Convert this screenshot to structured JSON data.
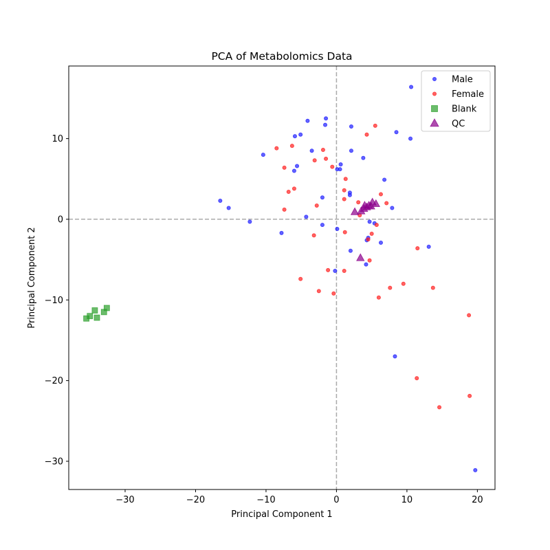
{
  "chart_data": {
    "type": "scatter",
    "title": "PCA of Metabolomics Data",
    "xlabel": "Principal Component 1",
    "ylabel": "Principal Component 2",
    "xlim": [
      -38,
      22.5
    ],
    "ylim": [
      -33.5,
      19
    ],
    "xticks": [
      -30,
      -20,
      -10,
      0,
      10,
      20
    ],
    "yticks": [
      -30,
      -20,
      -10,
      0,
      10
    ],
    "grid": false,
    "reference_lines": {
      "x": 0,
      "y": 0,
      "style": "dashed",
      "color": "#aaaaaa"
    },
    "legend": {
      "placement": "top-right"
    },
    "series": [
      {
        "name": "Male",
        "marker": "circle",
        "color": "#1f1fff",
        "points": [
          [
            10.6,
            16.4
          ],
          [
            -1.5,
            12.5
          ],
          [
            -4.1,
            12.2
          ],
          [
            2.1,
            11.5
          ],
          [
            -1.6,
            11.7
          ],
          [
            -5.1,
            10.5
          ],
          [
            -5.9,
            10.3
          ],
          [
            8.5,
            10.8
          ],
          [
            10.5,
            10.0
          ],
          [
            -3.5,
            8.5
          ],
          [
            2.1,
            8.5
          ],
          [
            -10.4,
            8.0
          ],
          [
            3.8,
            7.6
          ],
          [
            0.6,
            6.8
          ],
          [
            -5.6,
            6.6
          ],
          [
            0.1,
            6.2
          ],
          [
            0.5,
            6.2
          ],
          [
            -6.0,
            6.0
          ],
          [
            6.8,
            4.9
          ],
          [
            1.9,
            3.3
          ],
          [
            1.9,
            3.0
          ],
          [
            -2.0,
            2.7
          ],
          [
            -16.5,
            2.3
          ],
          [
            -15.3,
            1.4
          ],
          [
            7.9,
            1.4
          ],
          [
            -4.3,
            0.3
          ],
          [
            -12.3,
            -0.3
          ],
          [
            4.7,
            -0.3
          ],
          [
            5.4,
            -0.5
          ],
          [
            -2.0,
            -0.7
          ],
          [
            0.1,
            -1.2
          ],
          [
            -7.8,
            -1.7
          ],
          [
            4.5,
            -2.3
          ],
          [
            4.3,
            -2.6
          ],
          [
            6.3,
            -2.9
          ],
          [
            13.1,
            -3.4
          ],
          [
            2.0,
            -3.9
          ],
          [
            4.2,
            -5.6
          ],
          [
            -0.2,
            -6.4
          ],
          [
            8.3,
            -17.0
          ],
          [
            19.7,
            -31.1
          ]
        ]
      },
      {
        "name": "Female",
        "marker": "circle",
        "color": "#ff2020",
        "points": [
          [
            5.5,
            11.6
          ],
          [
            4.3,
            10.5
          ],
          [
            -6.3,
            9.1
          ],
          [
            -8.5,
            8.8
          ],
          [
            -1.9,
            8.6
          ],
          [
            -3.1,
            7.3
          ],
          [
            -1.5,
            7.5
          ],
          [
            -0.6,
            6.5
          ],
          [
            -7.4,
            6.4
          ],
          [
            1.3,
            5.0
          ],
          [
            -6.0,
            3.8
          ],
          [
            1.1,
            3.6
          ],
          [
            -6.8,
            3.4
          ],
          [
            6.3,
            3.1
          ],
          [
            1.1,
            2.5
          ],
          [
            3.1,
            2.1
          ],
          [
            7.1,
            2.0
          ],
          [
            -2.8,
            1.7
          ],
          [
            -7.4,
            1.2
          ],
          [
            3.3,
            0.5
          ],
          [
            5.7,
            -0.7
          ],
          [
            1.2,
            -1.6
          ],
          [
            -3.2,
            -2.0
          ],
          [
            5.0,
            -1.8
          ],
          [
            4.5,
            -2.5
          ],
          [
            11.5,
            -3.6
          ],
          [
            4.7,
            -5.1
          ],
          [
            -1.2,
            -6.3
          ],
          [
            1.1,
            -6.4
          ],
          [
            -5.1,
            -7.4
          ],
          [
            9.5,
            -8.0
          ],
          [
            7.6,
            -8.5
          ],
          [
            13.7,
            -8.5
          ],
          [
            -2.5,
            -8.9
          ],
          [
            -0.4,
            -9.2
          ],
          [
            6.0,
            -9.7
          ],
          [
            18.8,
            -11.9
          ],
          [
            11.4,
            -19.7
          ],
          [
            18.9,
            -21.9
          ],
          [
            14.6,
            -23.3
          ]
        ]
      },
      {
        "name": "Blank",
        "marker": "square",
        "color": "#2ca02c",
        "points": [
          [
            -35.5,
            -12.3
          ],
          [
            -35.0,
            -12.0
          ],
          [
            -34.3,
            -11.3
          ],
          [
            -34.0,
            -12.2
          ],
          [
            -33.0,
            -11.5
          ],
          [
            -32.6,
            -11.0
          ]
        ]
      },
      {
        "name": "QC",
        "marker": "triangle",
        "color": "#8b008b",
        "points": [
          [
            2.6,
            0.9
          ],
          [
            3.5,
            1.0
          ],
          [
            3.9,
            1.3
          ],
          [
            4.0,
            1.7
          ],
          [
            4.3,
            1.5
          ],
          [
            4.6,
            1.7
          ],
          [
            4.9,
            1.6
          ],
          [
            5.1,
            2.1
          ],
          [
            5.6,
            1.9
          ],
          [
            3.4,
            -4.8
          ]
        ]
      }
    ]
  }
}
